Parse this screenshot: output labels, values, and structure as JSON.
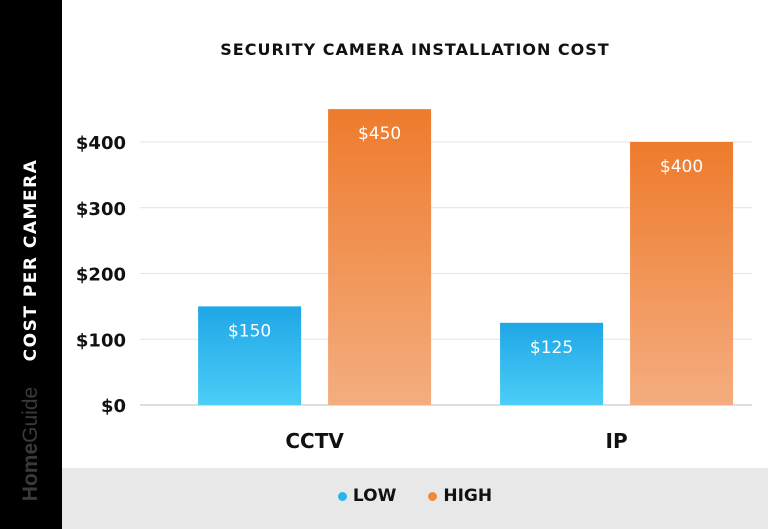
{
  "brand": {
    "part1": "Home",
    "part2": "Guide"
  },
  "colors": {
    "low": "#26b6ea",
    "high": "#ef8a3c",
    "sidebar": "#000000",
    "legend_band": "#e8e8e8"
  },
  "chart_data": {
    "type": "bar",
    "title": "SECURITY CAMERA INSTALLATION COST",
    "ylabel": "COST PER CAMERA",
    "xlabel": "",
    "categories": [
      "CCTV",
      "IP"
    ],
    "series": [
      {
        "name": "LOW",
        "values": [
          150,
          125
        ],
        "labels": [
          "$150",
          "$125"
        ]
      },
      {
        "name": "HIGH",
        "values": [
          450,
          400
        ],
        "labels": [
          "$450",
          "$400"
        ]
      }
    ],
    "yticks": [
      0,
      100,
      200,
      300,
      400
    ],
    "ytick_labels": [
      "$0",
      "$100",
      "$200",
      "$300",
      "$400"
    ],
    "ylim": [
      0,
      450
    ],
    "grid": true,
    "legend": "bottom"
  }
}
